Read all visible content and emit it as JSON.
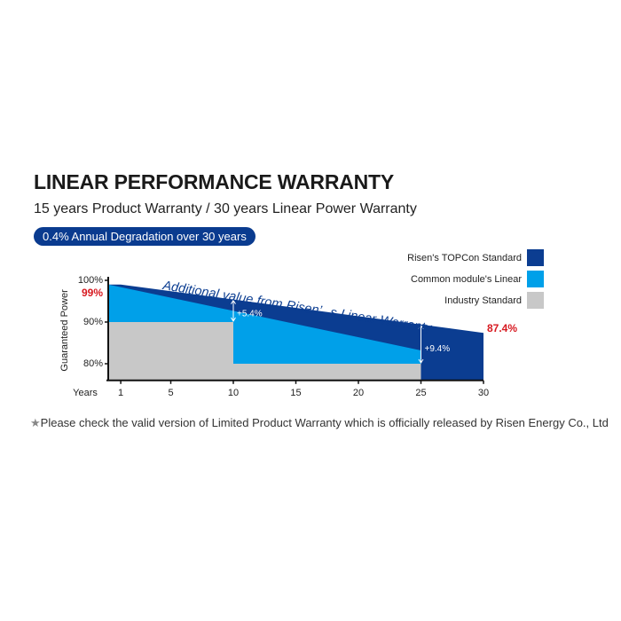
{
  "header": {
    "title": "LINEAR PERFORMANCE WARRANTY",
    "subtitle": "15 years Product Warranty / 30 years Linear Power Warranty",
    "badge": "0.4% Annual Degradation over 30 years"
  },
  "footnote": {
    "star": "★",
    "text": "Please check the valid version of Limited Product Warranty which is officially released by Risen Energy Co., Ltd"
  },
  "chart_data": {
    "type": "area",
    "ylabel": "Guaranteed Power",
    "xlabel": "Years",
    "xticks": [
      1,
      5,
      10,
      15,
      20,
      25,
      30
    ],
    "yticks": [
      "80%",
      "90%",
      "100%"
    ],
    "xlim": [
      0,
      30
    ],
    "ylim": [
      76,
      100
    ],
    "series": [
      {
        "name": "Risen's TOPCon Standard",
        "color": "#0b3d91",
        "points": [
          [
            0,
            99
          ],
          [
            1,
            99
          ],
          [
            30,
            87.4
          ]
        ]
      },
      {
        "name": "Common module's Linear",
        "color": "#00a0e9",
        "points": [
          [
            0,
            99
          ],
          [
            25,
            83.2
          ]
        ]
      },
      {
        "name": "Industry Standard",
        "color": "#c8c8c8",
        "points": [
          [
            0,
            90
          ],
          [
            10,
            90
          ],
          [
            10,
            80
          ],
          [
            25,
            80
          ]
        ]
      }
    ],
    "annotations": {
      "start": "99%",
      "end": "87.4%",
      "gap10": "+5.4%",
      "gap25": "+9.4%",
      "banner": "Additional value from Risen’ s Linear Warranty"
    },
    "accent": "#d71920"
  }
}
